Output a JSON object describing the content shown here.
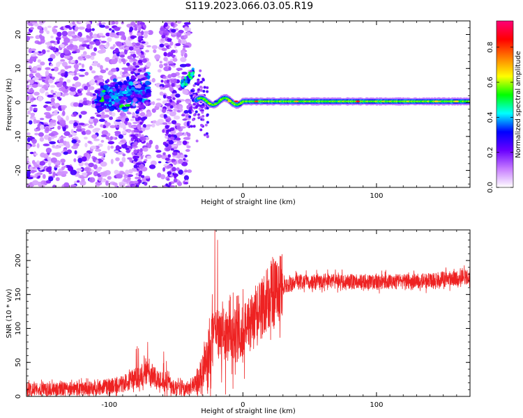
{
  "title": "S119.2023.066.03.05.R19",
  "chart_data": [
    {
      "type": "heatmap",
      "xlabel": "Height of straight line (km)",
      "ylabel": "Frequency (Hz)",
      "xlim": [
        -162,
        170
      ],
      "ylim": [
        -25,
        24
      ],
      "x_ticks": [
        -100,
        0,
        100
      ],
      "y_ticks": [
        -20,
        -10,
        0,
        10,
        20
      ],
      "colorbar": {
        "label": "Normalized spectral amplitude",
        "range": [
          0.0,
          0.95
        ],
        "ticks": [
          0.0,
          0.2,
          0.4,
          0.6,
          0.8
        ],
        "colors": [
          "#ffffff",
          "#c77dff",
          "#6a00ff",
          "#0000ff",
          "#00ffff",
          "#00ff00",
          "#ffff00",
          "#ff8000",
          "#ff0000",
          "#ff0077"
        ]
      },
      "features": [
        {
          "name": "scattered-noise",
          "x_range": [
            -162,
            -40
          ],
          "y_range": [
            -25,
            24
          ],
          "amplitude": 0.12
        },
        {
          "name": "signal-onset-cluster",
          "x_range": [
            -110,
            -70
          ],
          "y_range": [
            -4,
            7
          ],
          "amplitude": 0.4
        },
        {
          "name": "rising-feature",
          "x_range": [
            -46,
            -36
          ],
          "y_range": [
            5,
            9
          ],
          "amplitude": 0.5
        },
        {
          "name": "carrier-line",
          "x_range": [
            -35,
            170
          ],
          "y_center": 0.3,
          "amplitude": 0.55
        }
      ]
    },
    {
      "type": "line",
      "xlabel": "Height of straight line (km)",
      "ylabel": "SNR (10 * v/v)",
      "xlim": [
        -162,
        170
      ],
      "ylim": [
        0,
        245
      ],
      "x_ticks": [
        -100,
        0,
        100
      ],
      "y_ticks": [
        0,
        50,
        100,
        150,
        200
      ],
      "color": "#ee2222",
      "profile": [
        {
          "x": -162,
          "y": 10
        },
        {
          "x": -110,
          "y": 12
        },
        {
          "x": -90,
          "y": 18
        },
        {
          "x": -72,
          "y": 35
        },
        {
          "x": -62,
          "y": 25
        },
        {
          "x": -50,
          "y": 12
        },
        {
          "x": -40,
          "y": 10
        },
        {
          "x": -30,
          "y": 30
        },
        {
          "x": -24,
          "y": 80
        },
        {
          "x": -20,
          "y": 95
        },
        {
          "x": -10,
          "y": 90
        },
        {
          "x": 0,
          "y": 95
        },
        {
          "x": 10,
          "y": 115
        },
        {
          "x": 20,
          "y": 150
        },
        {
          "x": 30,
          "y": 160
        },
        {
          "x": 40,
          "y": 168
        },
        {
          "x": 60,
          "y": 170
        },
        {
          "x": 100,
          "y": 168
        },
        {
          "x": 140,
          "y": 170
        },
        {
          "x": 170,
          "y": 176
        }
      ],
      "spikes": [
        {
          "x": -21,
          "y": 245
        },
        {
          "x": -19,
          "y": 230
        },
        {
          "x": -23,
          "y": 150
        },
        {
          "x": 10,
          "y": 155
        }
      ]
    }
  ]
}
